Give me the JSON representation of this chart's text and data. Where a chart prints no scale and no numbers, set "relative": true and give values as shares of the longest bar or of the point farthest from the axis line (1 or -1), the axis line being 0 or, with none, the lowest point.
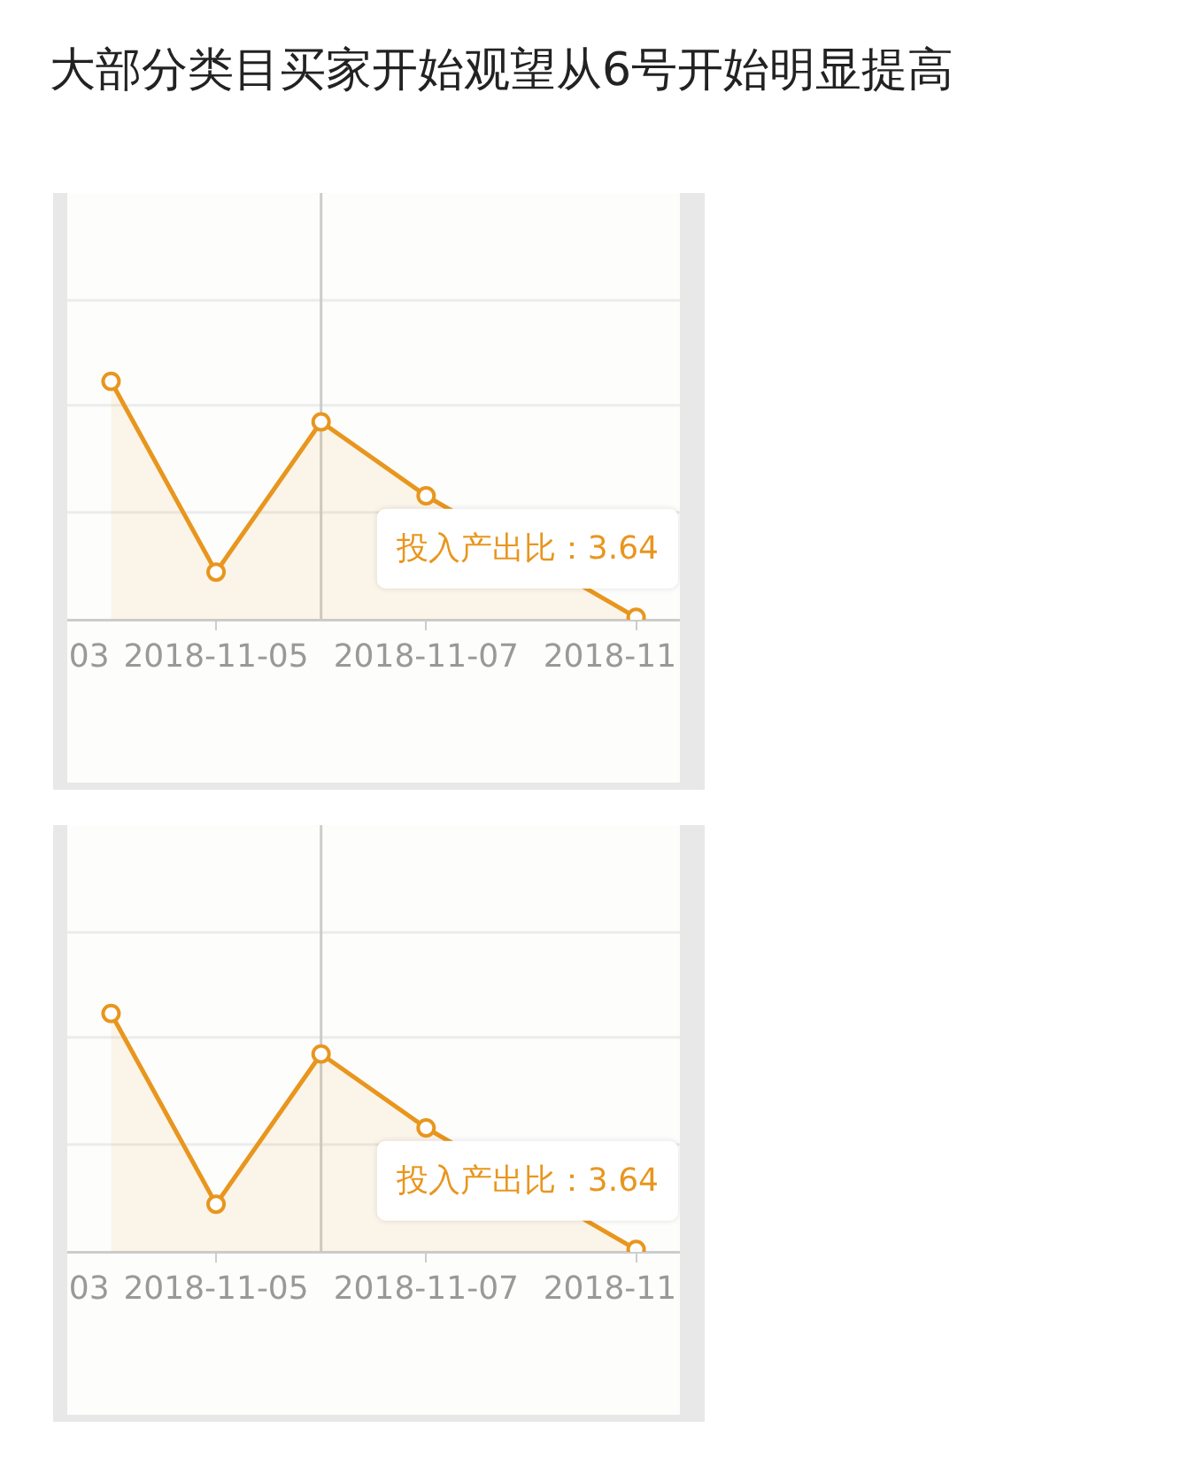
{
  "chart_data": [
    {
      "type": "area",
      "title": "大部分类目买家开始观望从6号开始明显提高",
      "x": [
        "2018-11-04",
        "2018-11-05",
        "2018-11-06",
        "2018-11-07",
        "2018-11-08",
        "2018-11-09"
      ],
      "values": [
        1,
        0.2,
        0.83,
        0.52,
        null,
        0.01
      ],
      "color": "#e8961e",
      "relative": true,
      "xlim": [
        "2018-11-03T14:00",
        "2018-11-09T10:00"
      ],
      "xticks": [
        {
          "value": "2018-11-03T19:00",
          "label": "03"
        },
        "2018-11-05",
        "2018-11-07",
        {
          "value": "2018-11-08T18:00",
          "label": "2018-11"
        },
        {
          "value": "2018-11-09",
          "label": null
        }
      ],
      "marker": "circle",
      "ref_lines": [
        {
          "axis": "y",
          "value": 0.45,
          "color": "#ececec"
        },
        {
          "axis": "y",
          "value": 0.9,
          "color": "#ececec"
        },
        {
          "axis": "y",
          "value": 1.34,
          "color": "#ececec"
        },
        {
          "axis": "x",
          "value": "2018-11-06",
          "color": "#cccccc"
        }
      ],
      "annotations": [
        "投入产出比：3.64"
      ]
    },
    {
      "type": "area",
      "x": [
        "2018-11-04",
        "2018-11-05",
        "2018-11-06",
        "2018-11-07",
        "2018-11-08",
        "2018-11-09"
      ],
      "values": [
        1,
        0.2,
        0.83,
        0.52,
        null,
        0.01
      ],
      "color": "#e8961e",
      "relative": true,
      "xlim": [
        "2018-11-03T14:00",
        "2018-11-09T10:00"
      ],
      "xticks": [
        {
          "value": "2018-11-03T19:00",
          "label": "03"
        },
        "2018-11-05",
        "2018-11-07",
        {
          "value": "2018-11-08T18:00",
          "label": "2018-11"
        },
        {
          "value": "2018-11-09",
          "label": null
        }
      ],
      "marker": "circle",
      "ref_lines": [
        {
          "axis": "y",
          "value": 0.45,
          "color": "#ececec"
        },
        {
          "axis": "y",
          "value": 0.9,
          "color": "#ececec"
        },
        {
          "axis": "y",
          "value": 1.34,
          "color": "#ececec"
        },
        {
          "axis": "x",
          "value": "2018-11-06",
          "color": "#cccccc"
        }
      ],
      "annotations": [
        "投入产出比：3.64"
      ]
    }
  ]
}
